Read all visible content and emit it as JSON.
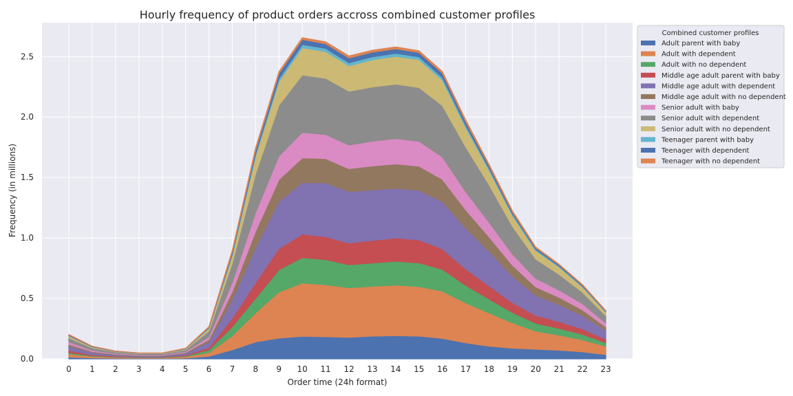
{
  "chart_data": {
    "type": "area",
    "title": "Hourly frequency of product orders accross combined customer profiles",
    "xlabel": "Order time (24h format)",
    "ylabel": "Frequency (in millions)",
    "x": [
      0,
      1,
      2,
      3,
      4,
      5,
      6,
      7,
      8,
      9,
      10,
      11,
      12,
      13,
      14,
      15,
      16,
      17,
      18,
      19,
      20,
      21,
      22,
      23
    ],
    "ylim": [
      0,
      2.78
    ],
    "yticks": [
      "0.0",
      "0.5",
      "1.0",
      "1.5",
      "2.0",
      "2.5"
    ],
    "grid": true,
    "legend_title": "Combined customer profiles",
    "legend_position": "outside-right",
    "series": [
      {
        "name": "Adult parent with baby",
        "color": "#4c72b0",
        "values": [
          0.015,
          0.008,
          0.005,
          0.004,
          0.004,
          0.006,
          0.022,
          0.075,
          0.14,
          0.172,
          0.187,
          0.183,
          0.178,
          0.188,
          0.192,
          0.188,
          0.17,
          0.133,
          0.105,
          0.088,
          0.08,
          0.072,
          0.058,
          0.035
        ]
      },
      {
        "name": "Adult with dependent",
        "color": "#dd8452",
        "values": [
          0.025,
          0.012,
          0.008,
          0.006,
          0.006,
          0.012,
          0.03,
          0.115,
          0.24,
          0.38,
          0.44,
          0.43,
          0.41,
          0.412,
          0.418,
          0.41,
          0.39,
          0.33,
          0.275,
          0.21,
          0.15,
          0.125,
          0.1,
          0.07
        ]
      },
      {
        "name": "Adult with no dependent",
        "color": "#55a868",
        "values": [
          0.012,
          0.006,
          0.004,
          0.003,
          0.003,
          0.006,
          0.022,
          0.075,
          0.12,
          0.185,
          0.21,
          0.208,
          0.19,
          0.193,
          0.197,
          0.196,
          0.18,
          0.145,
          0.115,
          0.085,
          0.065,
          0.055,
          0.045,
          0.028
        ]
      },
      {
        "name": "Middle age adult parent with baby",
        "color": "#c44e52",
        "values": [
          0.018,
          0.009,
          0.006,
          0.004,
          0.004,
          0.007,
          0.02,
          0.07,
          0.13,
          0.175,
          0.195,
          0.19,
          0.18,
          0.187,
          0.193,
          0.19,
          0.17,
          0.135,
          0.11,
          0.082,
          0.065,
          0.057,
          0.045,
          0.03
        ]
      },
      {
        "name": "Middle age adult with dependent",
        "color": "#8172b2",
        "values": [
          0.035,
          0.018,
          0.011,
          0.008,
          0.008,
          0.015,
          0.045,
          0.15,
          0.29,
          0.39,
          0.425,
          0.445,
          0.425,
          0.417,
          0.41,
          0.41,
          0.39,
          0.34,
          0.285,
          0.22,
          0.165,
          0.14,
          0.11,
          0.072
        ]
      },
      {
        "name": "Middle age adult with no dependent",
        "color": "#937860",
        "values": [
          0.015,
          0.008,
          0.005,
          0.004,
          0.004,
          0.007,
          0.02,
          0.07,
          0.135,
          0.18,
          0.205,
          0.2,
          0.19,
          0.198,
          0.202,
          0.2,
          0.185,
          0.15,
          0.12,
          0.09,
          0.07,
          0.06,
          0.048,
          0.03
        ]
      },
      {
        "name": "Senior adult with baby",
        "color": "#da8bc3",
        "values": [
          0.02,
          0.01,
          0.006,
          0.005,
          0.005,
          0.008,
          0.022,
          0.075,
          0.155,
          0.195,
          0.21,
          0.2,
          0.195,
          0.205,
          0.21,
          0.205,
          0.185,
          0.15,
          0.12,
          0.092,
          0.07,
          0.06,
          0.05,
          0.032
        ]
      },
      {
        "name": "Senior adult with dependent",
        "color": "#8c8c8c",
        "values": [
          0.035,
          0.02,
          0.012,
          0.009,
          0.009,
          0.015,
          0.05,
          0.16,
          0.32,
          0.42,
          0.475,
          0.465,
          0.445,
          0.448,
          0.45,
          0.445,
          0.425,
          0.37,
          0.31,
          0.23,
          0.16,
          0.13,
          0.095,
          0.06
        ]
      },
      {
        "name": "Senior adult with no dependent",
        "color": "#ccb974",
        "values": [
          0.015,
          0.007,
          0.004,
          0.003,
          0.003,
          0.006,
          0.02,
          0.065,
          0.145,
          0.195,
          0.225,
          0.22,
          0.21,
          0.225,
          0.23,
          0.23,
          0.21,
          0.16,
          0.12,
          0.09,
          0.07,
          0.06,
          0.045,
          0.03
        ]
      },
      {
        "name": "Teenager parent with baby",
        "color": "#64b5cd",
        "values": [
          0.003,
          0.002,
          0.001,
          0.001,
          0.001,
          0.002,
          0.005,
          0.012,
          0.02,
          0.025,
          0.027,
          0.027,
          0.025,
          0.025,
          0.025,
          0.024,
          0.023,
          0.02,
          0.016,
          0.012,
          0.01,
          0.008,
          0.006,
          0.004
        ]
      },
      {
        "name": "Teenager with dependent",
        "color": "#4c72b0",
        "values": [
          0.005,
          0.003,
          0.002,
          0.001,
          0.001,
          0.002,
          0.005,
          0.018,
          0.03,
          0.042,
          0.042,
          0.038,
          0.04,
          0.039,
          0.037,
          0.035,
          0.034,
          0.028,
          0.022,
          0.016,
          0.013,
          0.011,
          0.009,
          0.006
        ]
      },
      {
        "name": "Teenager with no dependent",
        "color": "#dd8452",
        "values": [
          0.004,
          0.002,
          0.001,
          0.001,
          0.001,
          0.002,
          0.005,
          0.012,
          0.02,
          0.016,
          0.015,
          0.016,
          0.017,
          0.015,
          0.016,
          0.015,
          0.015,
          0.015,
          0.012,
          0.01,
          0.007,
          0.005,
          0.004,
          0.003
        ]
      }
    ]
  }
}
